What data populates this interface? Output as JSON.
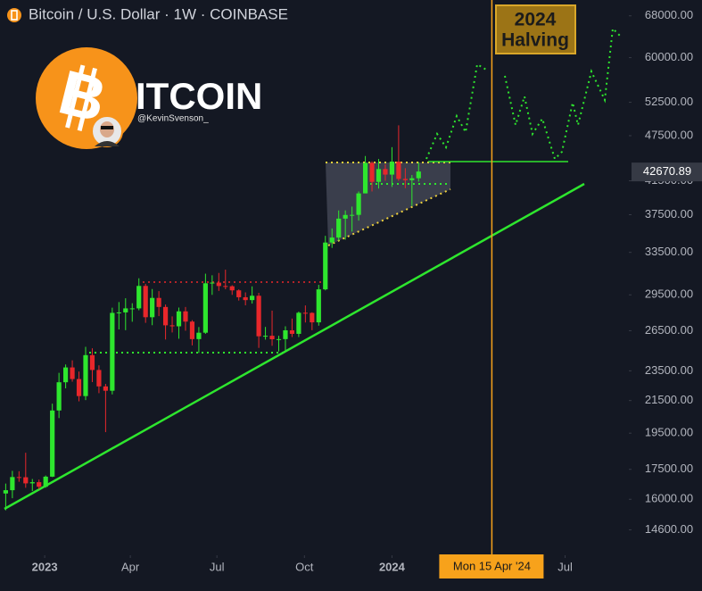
{
  "chart_data": {
    "type": "candlestick",
    "title": "Bitcoin / U.S. Dollar · 1W · COINBASE",
    "logo": {
      "symbol": "B",
      "wordmark": "ITCOIN",
      "handle": "@KevinSvenson_"
    },
    "annotation": [
      "2024",
      "Halving"
    ],
    "up_color": "#2ee62e",
    "down_color": "#e8272b",
    "log_scale": true,
    "x": [
      "2022-11-21",
      "2022-11-28",
      "2022-12-05",
      "2022-12-12",
      "2022-12-19",
      "2022-12-26",
      "2023-01-02",
      "2023-01-09",
      "2023-01-16",
      "2023-01-23",
      "2023-01-30",
      "2023-02-06",
      "2023-02-13",
      "2023-02-20",
      "2023-02-27",
      "2023-03-06",
      "2023-03-13",
      "2023-03-20",
      "2023-03-27",
      "2023-04-03",
      "2023-04-10",
      "2023-04-17",
      "2023-04-24",
      "2023-05-01",
      "2023-05-08",
      "2023-05-15",
      "2023-05-22",
      "2023-05-29",
      "2023-06-05",
      "2023-06-12",
      "2023-06-19",
      "2023-06-26",
      "2023-07-03",
      "2023-07-10",
      "2023-07-17",
      "2023-07-24",
      "2023-07-31",
      "2023-08-07",
      "2023-08-14",
      "2023-08-21",
      "2023-08-28",
      "2023-09-04",
      "2023-09-11",
      "2023-09-18",
      "2023-09-25",
      "2023-10-02",
      "2023-10-09",
      "2023-10-16",
      "2023-10-23",
      "2023-10-30",
      "2023-11-06",
      "2023-11-13",
      "2023-11-20",
      "2023-11-27",
      "2023-12-04",
      "2023-12-11",
      "2023-12-18",
      "2023-12-25",
      "2024-01-01",
      "2024-01-08",
      "2024-01-15",
      "2024-01-22",
      "2024-01-29"
    ],
    "open": [
      16280,
      16440,
      17100,
      17090,
      16780,
      16840,
      16610,
      17120,
      20870,
      22710,
      23740,
      22930,
      21790,
      24630,
      23560,
      22430,
      22140,
      27950,
      27990,
      28330,
      28330,
      30300,
      27590,
      29230,
      28450,
      26930,
      26850,
      28080,
      27230,
      25840,
      26340,
      30540,
      30600,
      30290,
      30270,
      29900,
      29290,
      29040,
      29420,
      26060,
      26100,
      25830,
      25840,
      26530,
      26250,
      27960,
      27950,
      27170,
      29990,
      34500,
      35020,
      37060,
      37470,
      37480,
      39970,
      43790,
      41370,
      42990,
      42280,
      43950,
      41740,
      41580,
      41820
    ],
    "high": [
      16770,
      17420,
      17400,
      18390,
      17000,
      16970,
      17180,
      21300,
      23360,
      23950,
      24250,
      23450,
      25250,
      25140,
      23890,
      22600,
      28390,
      28870,
      29200,
      28770,
      31000,
      30490,
      30020,
      29830,
      28660,
      27660,
      28400,
      28450,
      27350,
      26790,
      31430,
      31280,
      31500,
      31810,
      30360,
      29990,
      29720,
      30260,
      29680,
      26800,
      28140,
      26100,
      26850,
      27480,
      28060,
      28580,
      28000,
      30400,
      35200,
      35990,
      37980,
      37980,
      38420,
      40200,
      44700,
      44000,
      44300,
      43600,
      45900,
      49000,
      43100,
      42230,
      43880
    ],
    "low": [
      15480,
      16050,
      16860,
      16560,
      16400,
      16490,
      16560,
      17100,
      20400,
      22300,
      22750,
      21450,
      21530,
      22720,
      21980,
      19560,
      21900,
      26600,
      26540,
      27220,
      28170,
      27130,
      26940,
      27680,
      25810,
      26360,
      25870,
      26500,
      25360,
      24800,
      26250,
      29500,
      29850,
      30000,
      29500,
      29000,
      28590,
      28740,
      25170,
      25800,
      25330,
      24900,
      24920,
      26000,
      26000,
      27160,
      26540,
      26900,
      29900,
      33950,
      34700,
      34800,
      35650,
      36840,
      39970,
      40200,
      40550,
      41500,
      40750,
      41500,
      40600,
      38500,
      41400
    ],
    "close": [
      16440,
      17100,
      17090,
      16780,
      16840,
      16610,
      17120,
      20870,
      22710,
      23740,
      22930,
      21790,
      24630,
      23560,
      22430,
      22140,
      27950,
      27990,
      28330,
      28330,
      30300,
      27590,
      29230,
      28450,
      26930,
      26850,
      28080,
      27230,
      25840,
      26340,
      30540,
      30600,
      30290,
      30270,
      29900,
      29290,
      29040,
      29420,
      26060,
      26100,
      25830,
      25840,
      26530,
      26250,
      27960,
      27950,
      27170,
      29990,
      34500,
      35020,
      37060,
      37470,
      37480,
      39970,
      43790,
      41370,
      42990,
      42280,
      43950,
      41740,
      41580,
      41820,
      42670.89
    ],
    "last_price": 42670.89,
    "xlim": [
      "2022-11-15",
      "2024-09-06"
    ],
    "xticks": [
      {
        "value": "2023-01-01",
        "label": "2023"
      },
      {
        "value": "2023-04-01",
        "label": "Apr"
      },
      {
        "value": "2023-07-01",
        "label": "Jul"
      },
      {
        "value": "2023-10-01",
        "label": "Oct"
      },
      {
        "value": "2024-01-01",
        "label": "2024"
      },
      {
        "value": "2024-07-01",
        "label": "Jul"
      }
    ],
    "crosshair_x": {
      "value": "2024-04-15",
      "label": "Mon 15 Apr '24"
    },
    "ylim": [
      13530,
      71300
    ],
    "yticks": [
      {
        "value": 68000,
        "label": "68000.00"
      },
      {
        "value": 60000,
        "label": "60000.00"
      },
      {
        "value": 52500,
        "label": "52500.00"
      },
      {
        "value": 47500,
        "label": "47500.00"
      },
      {
        "value": 41500,
        "label": "41500.00"
      },
      {
        "value": 37500,
        "label": "37500.00"
      },
      {
        "value": 33500,
        "label": "33500.00"
      },
      {
        "value": 29500,
        "label": "29500.00"
      },
      {
        "value": 26500,
        "label": "26500.00"
      },
      {
        "value": 23500,
        "label": "23500.00"
      },
      {
        "value": 21500,
        "label": "21500.00"
      },
      {
        "value": 19500,
        "label": "19500.00"
      },
      {
        "value": 17500,
        "label": "17500.00"
      },
      {
        "value": 16000,
        "label": "16000.00"
      },
      {
        "value": 14600,
        "label": "14600.00"
      }
    ]
  }
}
